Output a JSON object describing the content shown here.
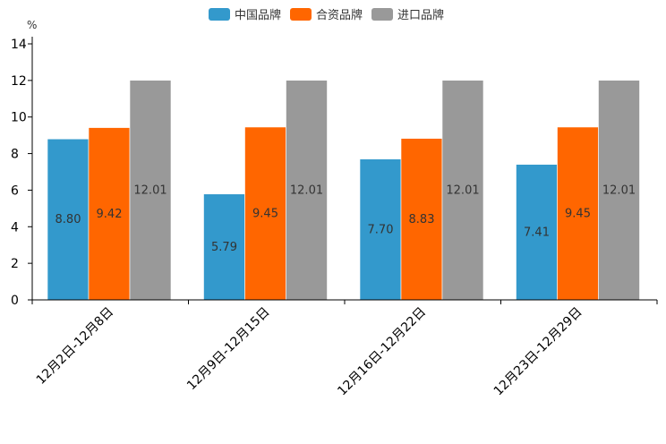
{
  "chart_data": {
    "type": "bar",
    "unit": "%",
    "categories": [
      "12月2日-12月8日",
      "12月9日-12月15日",
      "12月16日-12月22日",
      "12月23日-12月29日"
    ],
    "series": [
      {
        "name": "中国品牌",
        "color": "#3399cc",
        "values": [
          8.8,
          5.79,
          7.7,
          7.41
        ]
      },
      {
        "name": "合资品牌",
        "color": "#ff6600",
        "values": [
          9.42,
          9.45,
          8.83,
          9.45
        ]
      },
      {
        "name": "进口品牌",
        "color": "#999999",
        "values": [
          12.01,
          12.01,
          12.01,
          12.01
        ]
      }
    ],
    "value_labels": [
      [
        "8.80",
        "5.79",
        "7.70",
        "7.41"
      ],
      [
        "9.42",
        "9.45",
        "8.83",
        "9.45"
      ],
      [
        "12.01",
        "12.01",
        "12.01",
        "12.01"
      ]
    ],
    "ylim": [
      0,
      14
    ],
    "yticks": [
      "0",
      "2",
      "4",
      "6",
      "8",
      "10",
      "12",
      "14"
    ],
    "legend_position": "top-center",
    "grid": false
  }
}
